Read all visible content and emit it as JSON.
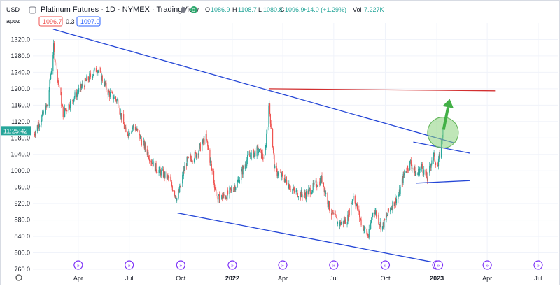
{
  "header": {
    "title": "Platinum Futures · 1D · NYMEX · TradingView",
    "o_label": "O",
    "o_val": "1086.9",
    "h_label": "H",
    "h_val": "1108.7",
    "l_label": "L",
    "l_val": "1080.8",
    "c_label": "C",
    "c_val": "1096.9",
    "change": "+14.0 (+1.29%)",
    "vol_label": "Vol",
    "vol_val": "7.227K",
    "currency": "USD",
    "study_label": "apoz",
    "bid": "1096.7",
    "spread": "0.3",
    "ask": "1097.0",
    "last_price_time": "11:25:42"
  },
  "colors": {
    "up": "#26a69a",
    "down": "#ef5350",
    "trend": "#2446d6",
    "resistance": "#d32f2f",
    "arrow": "#43b047",
    "circle": "#8bd17c",
    "event": "#7b2ff7",
    "grid": "#f0f3fa"
  },
  "chart_data": {
    "type": "candlestick",
    "symbol": "Platinum Futures",
    "interval": "1D",
    "exchange": "NYMEX",
    "ylim": [
      760,
      1360
    ],
    "yticks": [
      760,
      800,
      840,
      880,
      920,
      960,
      1000,
      1040,
      1080,
      1120,
      1160,
      1200,
      1240,
      1280,
      1320
    ],
    "xlim": [
      "2021-01-10",
      "2023-08-05"
    ],
    "xticks": [
      {
        "date": "2021-04-01",
        "label": "Apr"
      },
      {
        "date": "2021-07-01",
        "label": "Jul"
      },
      {
        "date": "2021-10-01",
        "label": "Oct"
      },
      {
        "date": "2022-01-01",
        "label": "2022"
      },
      {
        "date": "2022-04-01",
        "label": "Apr"
      },
      {
        "date": "2022-07-01",
        "label": "Jul"
      },
      {
        "date": "2022-10-01",
        "label": "Oct"
      },
      {
        "date": "2023-01-01",
        "label": "2023"
      },
      {
        "date": "2023-04-01",
        "label": "Apr"
      },
      {
        "date": "2023-07-01",
        "label": "Jul"
      }
    ],
    "price_path": [
      [
        "2021-01-12",
        1090
      ],
      [
        "2021-02-05",
        1160
      ],
      [
        "2021-02-16",
        1300
      ],
      [
        "2021-02-24",
        1220
      ],
      [
        "2021-03-05",
        1140
      ],
      [
        "2021-03-25",
        1180
      ],
      [
        "2021-04-10",
        1210
      ],
      [
        "2021-05-05",
        1250
      ],
      [
        "2021-05-25",
        1190
      ],
      [
        "2021-06-10",
        1170
      ],
      [
        "2021-06-25",
        1090
      ],
      [
        "2021-07-10",
        1110
      ],
      [
        "2021-07-28",
        1060
      ],
      [
        "2021-08-15",
        1010
      ],
      [
        "2021-09-10",
        980
      ],
      [
        "2021-09-25",
        930
      ],
      [
        "2021-10-10",
        1020
      ],
      [
        "2021-10-28",
        1040
      ],
      [
        "2021-11-15",
        1080
      ],
      [
        "2021-12-05",
        930
      ],
      [
        "2021-12-22",
        940
      ],
      [
        "2022-01-10",
        970
      ],
      [
        "2022-01-28",
        1030
      ],
      [
        "2022-02-15",
        1050
      ],
      [
        "2022-02-28",
        1030
      ],
      [
        "2022-03-07",
        1170
      ],
      [
        "2022-03-18",
        1000
      ],
      [
        "2022-04-05",
        980
      ],
      [
        "2022-04-20",
        950
      ],
      [
        "2022-05-10",
        940
      ],
      [
        "2022-05-25",
        960
      ],
      [
        "2022-06-10",
        980
      ],
      [
        "2022-06-25",
        900
      ],
      [
        "2022-07-10",
        870
      ],
      [
        "2022-07-25",
        880
      ],
      [
        "2022-08-05",
        940
      ],
      [
        "2022-08-20",
        870
      ],
      [
        "2022-09-01",
        840
      ],
      [
        "2022-09-10",
        910
      ],
      [
        "2022-09-25",
        860
      ],
      [
        "2022-10-10",
        910
      ],
      [
        "2022-10-25",
        940
      ],
      [
        "2022-11-05",
        1000
      ],
      [
        "2022-11-15",
        1020
      ],
      [
        "2022-11-25",
        990
      ],
      [
        "2022-12-05",
        1010
      ],
      [
        "2022-12-15",
        980
      ],
      [
        "2022-12-25",
        1040
      ],
      [
        "2023-01-03",
        1010
      ],
      [
        "2023-01-08",
        1060
      ],
      [
        "2023-01-12",
        1096.9
      ]
    ],
    "trendlines": [
      {
        "kind": "channel-upper",
        "color": "trend",
        "points": [
          [
            "2021-02-15",
            1345
          ],
          [
            "2023-02-01",
            1068
          ]
        ]
      },
      {
        "kind": "channel-lower",
        "color": "trend",
        "points": [
          [
            "2021-09-25",
            897
          ],
          [
            "2022-12-22",
            778
          ]
        ]
      },
      {
        "kind": "resistance",
        "color": "resistance",
        "points": [
          [
            "2022-03-07",
            1200
          ],
          [
            "2023-04-15",
            1195
          ]
        ]
      },
      {
        "kind": "flag-top",
        "color": "trend",
        "points": [
          [
            "2022-11-20",
            1070
          ],
          [
            "2023-03-01",
            1043
          ]
        ]
      },
      {
        "kind": "flag-bottom",
        "color": "trend",
        "points": [
          [
            "2022-11-25",
            970
          ],
          [
            "2023-03-01",
            976
          ]
        ]
      }
    ],
    "breakout_circle": {
      "date": "2023-01-12",
      "price": 1093
    },
    "breakout_arrow": {
      "from": [
        "2023-01-13",
        1100
      ],
      "to": [
        "2023-01-24",
        1175
      ]
    },
    "event_markers": [
      "2021-04-01",
      "2021-07-01",
      "2021-10-01",
      "2022-01-01",
      "2022-04-01",
      "2022-07-01",
      "2022-10-01",
      "2023-01-01",
      "2023-01-04",
      "2023-04-01",
      "2023-07-01"
    ]
  }
}
